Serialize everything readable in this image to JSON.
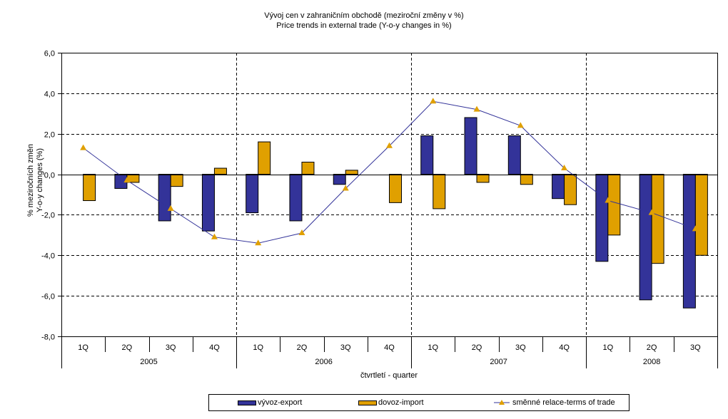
{
  "chart_data": {
    "type": "bar",
    "title": "Vývoj cen v zahraničním obchodě (meziroční změny v %)",
    "subtitle": "Price trends in external trade (Y-o-y changes in %)",
    "ylabel_line1": "% meziročních změn",
    "ylabel_line2": "Y-o-y changes (%)",
    "xlabel": "čtvrtletí - quarter",
    "ylim": [
      -8,
      6
    ],
    "yticks": [
      6,
      4,
      2,
      0,
      -2,
      -4,
      -6,
      -8
    ],
    "ytick_labels": [
      "6,0",
      "4,0",
      "2,0",
      "0,0",
      "-2,0",
      "-4,0",
      "-6,0",
      "-8,0"
    ],
    "grid": "horizontal dashed, vertical dashed between years",
    "categories": [
      "1Q",
      "2Q",
      "3Q",
      "4Q",
      "1Q",
      "2Q",
      "3Q",
      "4Q",
      "1Q",
      "2Q",
      "3Q",
      "4Q",
      "1Q",
      "2Q",
      "3Q"
    ],
    "years": [
      {
        "label": "2005",
        "count": 4
      },
      {
        "label": "2006",
        "count": 4
      },
      {
        "label": "2007",
        "count": 4
      },
      {
        "label": "2008",
        "count": 3
      }
    ],
    "series": [
      {
        "name": "vývoz-export",
        "kind": "bar",
        "color": "#333399",
        "values": [
          0.0,
          -0.7,
          -2.3,
          -2.8,
          -1.9,
          -2.3,
          -0.5,
          0.0,
          1.9,
          2.8,
          1.9,
          -1.2,
          -4.3,
          -6.2,
          -6.6
        ]
      },
      {
        "name": "dovoz-import",
        "kind": "bar",
        "color": "#E0A000",
        "values": [
          -1.3,
          -0.4,
          -0.6,
          0.3,
          1.6,
          0.6,
          0.2,
          -1.4,
          -1.7,
          -0.4,
          -0.5,
          -1.5,
          -3.0,
          -4.4,
          -4.0
        ]
      },
      {
        "name": "směnné relace-terms of trade",
        "kind": "line",
        "color": "#333399",
        "marker_color": "#E0A000",
        "values": [
          1.3,
          -0.3,
          -1.7,
          -3.1,
          -3.4,
          -2.9,
          -0.7,
          1.4,
          3.6,
          3.2,
          2.4,
          0.3,
          -1.3,
          -1.9,
          -2.7
        ]
      }
    ],
    "legend": {
      "placement": "bottom-center"
    }
  }
}
